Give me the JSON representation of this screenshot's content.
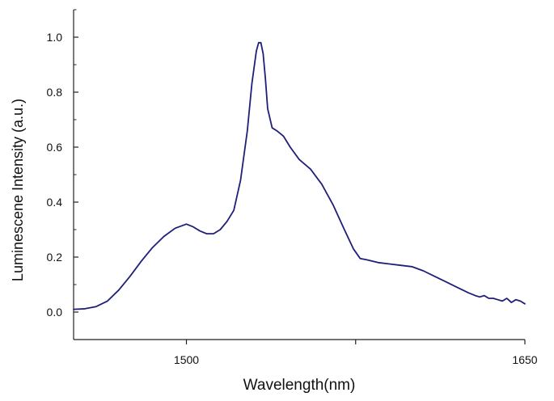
{
  "chart_data": {
    "type": "line",
    "title": "",
    "xlabel": "Wavelength(nm)",
    "ylabel": "Luminescene Intensity (a.u.)",
    "xlim": [
      1450,
      1650
    ],
    "ylim": [
      -0.1,
      1.1
    ],
    "x_ticks": [
      1500,
      1575,
      1650
    ],
    "x_tick_labels": [
      "1500",
      "",
      "1650"
    ],
    "y_ticks": [
      0.0,
      0.2,
      0.4,
      0.6,
      0.8,
      1.0
    ],
    "y_tick_labels": [
      "0.0",
      "0.2",
      "0.4",
      "0.6",
      "0.8",
      "1.0"
    ],
    "grid": false,
    "legend": "none",
    "series": [
      {
        "color": "#1f1f7a",
        "x": [
          1450,
          1455,
          1460,
          1465,
          1470,
          1475,
          1480,
          1485,
          1490,
          1495,
          1500,
          1503,
          1506,
          1509,
          1512,
          1515,
          1518,
          1521,
          1524,
          1527,
          1529,
          1531,
          1532,
          1533,
          1534,
          1535,
          1536,
          1538,
          1540,
          1543,
          1546,
          1550,
          1555,
          1560,
          1565,
          1570,
          1574,
          1577,
          1580,
          1585,
          1590,
          1595,
          1600,
          1605,
          1610,
          1615,
          1620,
          1625,
          1628,
          1630,
          1632,
          1634,
          1636,
          1638,
          1640,
          1642,
          1644,
          1646,
          1648,
          1650
        ],
        "values": [
          0.01,
          0.012,
          0.02,
          0.04,
          0.08,
          0.13,
          0.185,
          0.235,
          0.275,
          0.305,
          0.32,
          0.31,
          0.295,
          0.285,
          0.285,
          0.3,
          0.33,
          0.37,
          0.48,
          0.66,
          0.83,
          0.95,
          0.98,
          0.98,
          0.94,
          0.85,
          0.74,
          0.67,
          0.66,
          0.64,
          0.6,
          0.555,
          0.52,
          0.465,
          0.39,
          0.3,
          0.23,
          0.195,
          0.19,
          0.18,
          0.175,
          0.17,
          0.165,
          0.15,
          0.13,
          0.11,
          0.09,
          0.07,
          0.06,
          0.055,
          0.06,
          0.05,
          0.05,
          0.045,
          0.04,
          0.05,
          0.035,
          0.045,
          0.04,
          0.03
        ]
      }
    ]
  }
}
